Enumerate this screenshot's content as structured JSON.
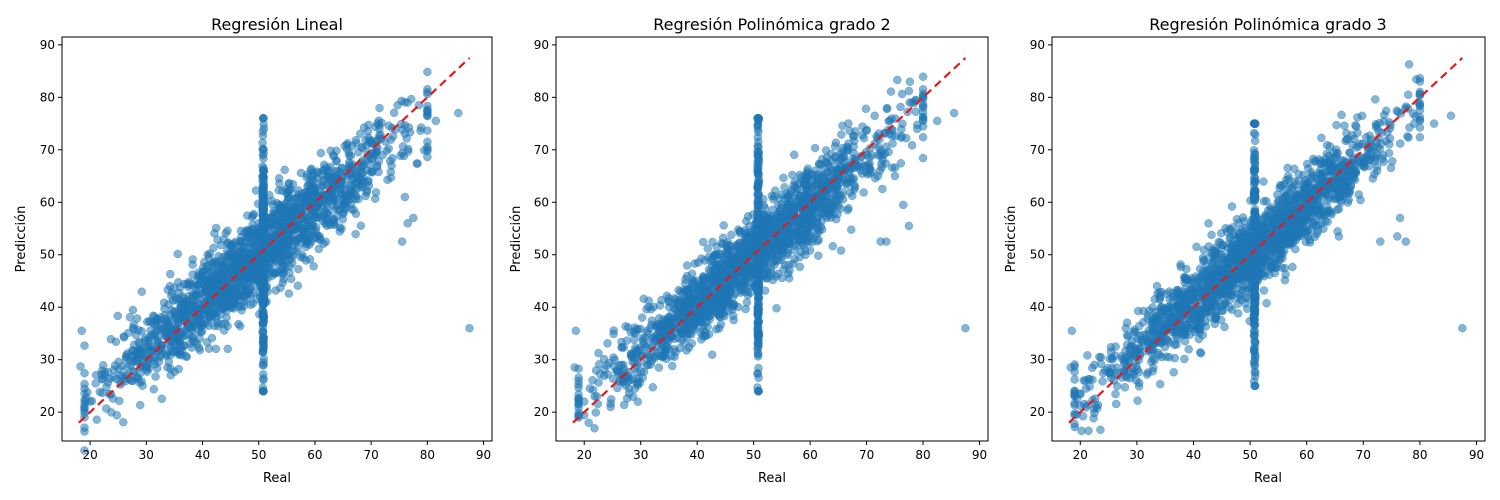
{
  "figure": {
    "background": "#ffffff"
  },
  "style": {
    "point_color": "#1f77b4",
    "point_opacity": 0.55,
    "reference_line_color": "#e31a1c"
  },
  "chart_data": [
    {
      "type": "scatter",
      "title": "Regresión Lineal",
      "xlabel": "Real",
      "ylabel": "Predicción",
      "xlim": [
        15,
        91.5
      ],
      "ylim": [
        14.5,
        91.5
      ],
      "xticks": [
        20,
        30,
        40,
        50,
        60,
        70,
        80,
        90
      ],
      "yticks": [
        20,
        30,
        40,
        50,
        60,
        70,
        80,
        90
      ],
      "grid": false,
      "reference_line": {
        "from": [
          18,
          18
        ],
        "to": [
          87.5,
          87.5
        ],
        "style": "dashed"
      },
      "cloud": {
        "slope": 0.9,
        "intercept": 5.0,
        "x_range": [
          19,
          80
        ],
        "y_spread": 4.0
      },
      "vertical_cluster": {
        "x": 50.8,
        "y_range": [
          24,
          76
        ]
      },
      "outliers": [
        {
          "x": 87.5,
          "y": 36.0
        },
        {
          "x": 18.5,
          "y": 35.5
        },
        {
          "x": 18.3,
          "y": 28.7
        },
        {
          "x": 85.5,
          "y": 77.0
        },
        {
          "x": 81.5,
          "y": 75.5
        },
        {
          "x": 78.5,
          "y": 78.5
        },
        {
          "x": 76.5,
          "y": 56.0
        },
        {
          "x": 77.5,
          "y": 57.0
        },
        {
          "x": 76.0,
          "y": 61.0
        },
        {
          "x": 75.5,
          "y": 52.5
        },
        {
          "x": 20.0,
          "y": 22.0
        },
        {
          "x": 21.0,
          "y": 25.5
        }
      ]
    },
    {
      "type": "scatter",
      "title": "Regresión Polinómica grado 2",
      "xlabel": "Real",
      "ylabel": "Predicción",
      "xlim": [
        15,
        91.5
      ],
      "ylim": [
        14.5,
        91.5
      ],
      "xticks": [
        20,
        30,
        40,
        50,
        60,
        70,
        80,
        90
      ],
      "yticks": [
        20,
        30,
        40,
        50,
        60,
        70,
        80,
        90
      ],
      "grid": false,
      "reference_line": {
        "from": [
          18,
          18
        ],
        "to": [
          87.5,
          87.5
        ],
        "style": "dashed"
      },
      "cloud": {
        "slope": 0.92,
        "intercept": 4.0,
        "x_range": [
          19,
          80
        ],
        "y_spread": 3.8
      },
      "vertical_cluster": {
        "x": 50.8,
        "y_range": [
          24,
          76
        ]
      },
      "outliers": [
        {
          "x": 87.5,
          "y": 36.0
        },
        {
          "x": 18.5,
          "y": 35.5
        },
        {
          "x": 18.3,
          "y": 28.5
        },
        {
          "x": 85.5,
          "y": 77.0
        },
        {
          "x": 82.5,
          "y": 75.5
        },
        {
          "x": 78.0,
          "y": 79.0
        },
        {
          "x": 77.5,
          "y": 55.5
        },
        {
          "x": 76.5,
          "y": 59.5
        },
        {
          "x": 73.5,
          "y": 52.5
        },
        {
          "x": 72.5,
          "y": 52.5
        },
        {
          "x": 20.0,
          "y": 22.0
        },
        {
          "x": 21.0,
          "y": 24.5
        }
      ]
    },
    {
      "type": "scatter",
      "title": "Regresión Polinómica grado 3",
      "xlabel": "Real",
      "ylabel": "Predicción",
      "xlim": [
        15,
        91.5
      ],
      "ylim": [
        14.5,
        91.5
      ],
      "xticks": [
        20,
        30,
        40,
        50,
        60,
        70,
        80,
        90
      ],
      "yticks": [
        20,
        30,
        40,
        50,
        60,
        70,
        80,
        90
      ],
      "grid": false,
      "reference_line": {
        "from": [
          18,
          18
        ],
        "to": [
          87.5,
          87.5
        ],
        "style": "dashed"
      },
      "cloud": {
        "slope": 0.93,
        "intercept": 3.5,
        "x_range": [
          19,
          80
        ],
        "y_spread": 3.7
      },
      "vertical_cluster": {
        "x": 50.8,
        "y_range": [
          25,
          75
        ]
      },
      "outliers": [
        {
          "x": 87.5,
          "y": 36.0
        },
        {
          "x": 18.5,
          "y": 35.5
        },
        {
          "x": 18.3,
          "y": 28.5
        },
        {
          "x": 85.5,
          "y": 76.5
        },
        {
          "x": 82.5,
          "y": 75.0
        },
        {
          "x": 79.0,
          "y": 75.0
        },
        {
          "x": 77.5,
          "y": 52.5
        },
        {
          "x": 76.0,
          "y": 53.5
        },
        {
          "x": 76.5,
          "y": 57.0
        },
        {
          "x": 73.0,
          "y": 52.5
        },
        {
          "x": 20.0,
          "y": 23.5
        },
        {
          "x": 21.0,
          "y": 24.5
        }
      ]
    }
  ]
}
